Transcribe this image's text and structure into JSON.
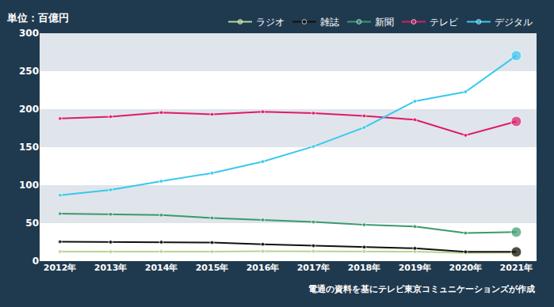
{
  "chart_data": {
    "type": "line",
    "ylabel": "単位：百億円",
    "annotations": [
      "電通の資料を基にテレビ東京コミュニケーションズが作成"
    ],
    "categories": [
      "2012年",
      "2013年",
      "2014年",
      "2015年",
      "2016年",
      "2017年",
      "2018年",
      "2019年",
      "2020年",
      "2021年"
    ],
    "series": [
      {
        "name": "ラジオ",
        "color": "#b9d38f",
        "values": [
          12.5,
          12.4,
          12.7,
          12.5,
          12.9,
          12.9,
          12.8,
          12.6,
          10.7,
          11.1
        ]
      },
      {
        "name": "雑誌",
        "color": "#111111",
        "values": [
          25.5,
          25.0,
          25.0,
          24.4,
          22.2,
          20.2,
          18.4,
          16.8,
          12.2,
          12.2
        ]
      },
      {
        "name": "新聞",
        "color": "#3a9a6e",
        "values": [
          62.4,
          61.7,
          60.6,
          56.8,
          54.3,
          51.5,
          47.8,
          45.5,
          36.9,
          38.2
        ]
      },
      {
        "name": "テレビ",
        "color": "#e0196b",
        "values": [
          187.7,
          190.2,
          195.6,
          193.2,
          196.6,
          194.8,
          191.2,
          186.1,
          165.6,
          183.9
        ]
      },
      {
        "name": "デジタル",
        "color": "#38c8f0",
        "values": [
          86.8,
          93.8,
          105.2,
          115.9,
          131.0,
          150.9,
          175.9,
          210.5,
          222.9,
          270.5
        ]
      }
    ],
    "ylim": [
      0,
      300
    ],
    "yticks": [
      0,
      50,
      100,
      150,
      200,
      250,
      300
    ],
    "grid": true,
    "legend": "top",
    "marker": "circle"
  }
}
